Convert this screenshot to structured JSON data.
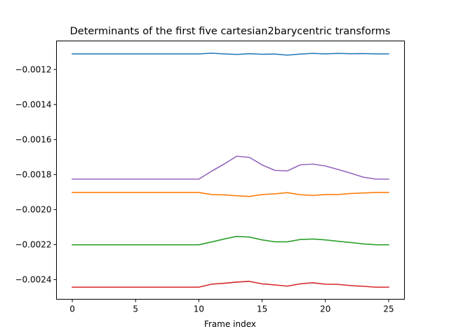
{
  "chart_data": {
    "type": "line",
    "title": "Determinants of the first five cartesian2barycentric transforms",
    "xlabel": "Frame index",
    "ylabel": "",
    "xlim": [
      -1.25,
      26.25
    ],
    "ylim": [
      -0.002512,
      -0.001037
    ],
    "x": [
      0,
      1,
      2,
      3,
      4,
      5,
      6,
      7,
      8,
      9,
      10,
      11,
      12,
      13,
      14,
      15,
      16,
      17,
      18,
      19,
      20,
      21,
      22,
      23,
      24,
      25
    ],
    "x_ticks": [
      0,
      5,
      10,
      15,
      20,
      25
    ],
    "x_tick_labels": [
      "0",
      "5",
      "10",
      "15",
      "20",
      "25"
    ],
    "y_ticks": [
      -0.0012,
      -0.0014,
      -0.0016,
      -0.0018,
      -0.002,
      -0.0022,
      -0.0024
    ],
    "y_tick_labels": [
      "−0.0012",
      "−0.0014",
      "−0.0016",
      "−0.0018",
      "−0.0020",
      "−0.0022",
      "−0.0024"
    ],
    "grid": false,
    "series": [
      {
        "color": "#1f77b4",
        "values": [
          -0.001111,
          -0.001111,
          -0.001111,
          -0.001111,
          -0.001111,
          -0.001111,
          -0.001111,
          -0.001111,
          -0.001111,
          -0.001111,
          -0.001111,
          -0.001107,
          -0.001111,
          -0.001114,
          -0.00111,
          -0.001113,
          -0.001112,
          -0.001118,
          -0.001112,
          -0.001108,
          -0.001111,
          -0.001108,
          -0.00111,
          -0.001109,
          -0.001111,
          -0.001111
        ]
      },
      {
        "color": "#ff7f0e",
        "values": [
          -0.001902,
          -0.001902,
          -0.001902,
          -0.001902,
          -0.001902,
          -0.001902,
          -0.001902,
          -0.001902,
          -0.001902,
          -0.001902,
          -0.001902,
          -0.001914,
          -0.001916,
          -0.001921,
          -0.001925,
          -0.001914,
          -0.00191,
          -0.001903,
          -0.001915,
          -0.001919,
          -0.001914,
          -0.001914,
          -0.001908,
          -0.001905,
          -0.001902,
          -0.001902
        ]
      },
      {
        "color": "#2ca02c",
        "values": [
          -0.002201,
          -0.002201,
          -0.002201,
          -0.002201,
          -0.002201,
          -0.002201,
          -0.002201,
          -0.002201,
          -0.002201,
          -0.002201,
          -0.002201,
          -0.002185,
          -0.002168,
          -0.002153,
          -0.002157,
          -0.002173,
          -0.002184,
          -0.002184,
          -0.002171,
          -0.002168,
          -0.002173,
          -0.002181,
          -0.002188,
          -0.002196,
          -0.002201,
          -0.002201
        ]
      },
      {
        "color": "#d62728",
        "values": [
          -0.002443,
          -0.002443,
          -0.002443,
          -0.002443,
          -0.002443,
          -0.002443,
          -0.002443,
          -0.002443,
          -0.002443,
          -0.002443,
          -0.002443,
          -0.002426,
          -0.002421,
          -0.002414,
          -0.00241,
          -0.002424,
          -0.00243,
          -0.002437,
          -0.002424,
          -0.002418,
          -0.002426,
          -0.002427,
          -0.002434,
          -0.002438,
          -0.002443,
          -0.002443
        ]
      },
      {
        "color": "#9467bd",
        "values": [
          -0.001826,
          -0.001826,
          -0.001826,
          -0.001826,
          -0.001826,
          -0.001826,
          -0.001826,
          -0.001826,
          -0.001826,
          -0.001826,
          -0.001826,
          -0.001781,
          -0.00174,
          -0.001695,
          -0.001702,
          -0.001745,
          -0.001776,
          -0.001779,
          -0.001745,
          -0.00174,
          -0.001751,
          -0.001771,
          -0.001792,
          -0.001815,
          -0.001826,
          -0.001826
        ]
      }
    ]
  }
}
